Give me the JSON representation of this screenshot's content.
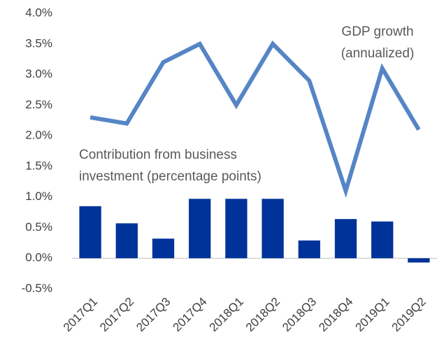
{
  "chart_data": {
    "type": "bar-line",
    "categories": [
      "2017Q1",
      "2017Q2",
      "2017Q3",
      "2017Q4",
      "2018Q1",
      "2018Q2",
      "2018Q3",
      "2018Q4",
      "2019Q1",
      "2019Q2"
    ],
    "series": [
      {
        "type": "bar",
        "color": "#003399",
        "values": [
          0.85,
          0.57,
          0.32,
          0.97,
          0.97,
          0.97,
          0.29,
          0.64,
          0.6,
          -0.07
        ]
      },
      {
        "type": "line",
        "color": "#5585c5",
        "values": [
          2.3,
          2.2,
          3.2,
          3.5,
          2.5,
          3.5,
          2.9,
          1.1,
          3.1,
          2.1
        ]
      }
    ],
    "annotations": [
      {
        "lines": [
          "GDP growth",
          "(annualized)"
        ]
      },
      {
        "lines": [
          "Contribution from business",
          "investment (percentage points)"
        ]
      }
    ],
    "ylim": [
      -0.5,
      4.0
    ],
    "yticks": [
      {
        "value": -0.5,
        "label": "-0.5%"
      },
      {
        "value": 0.0,
        "label": "0.0%"
      },
      {
        "value": 0.5,
        "label": "0.5%"
      },
      {
        "value": 1.0,
        "label": "1.0%"
      },
      {
        "value": 1.5,
        "label": "1.5%"
      },
      {
        "value": 2.0,
        "label": "2.0%"
      },
      {
        "value": 2.5,
        "label": "2.5%"
      },
      {
        "value": 3.0,
        "label": "3.0%"
      },
      {
        "value": 3.5,
        "label": "3.5%"
      },
      {
        "value": 4.0,
        "label": "4.0%"
      }
    ],
    "grid": false
  }
}
